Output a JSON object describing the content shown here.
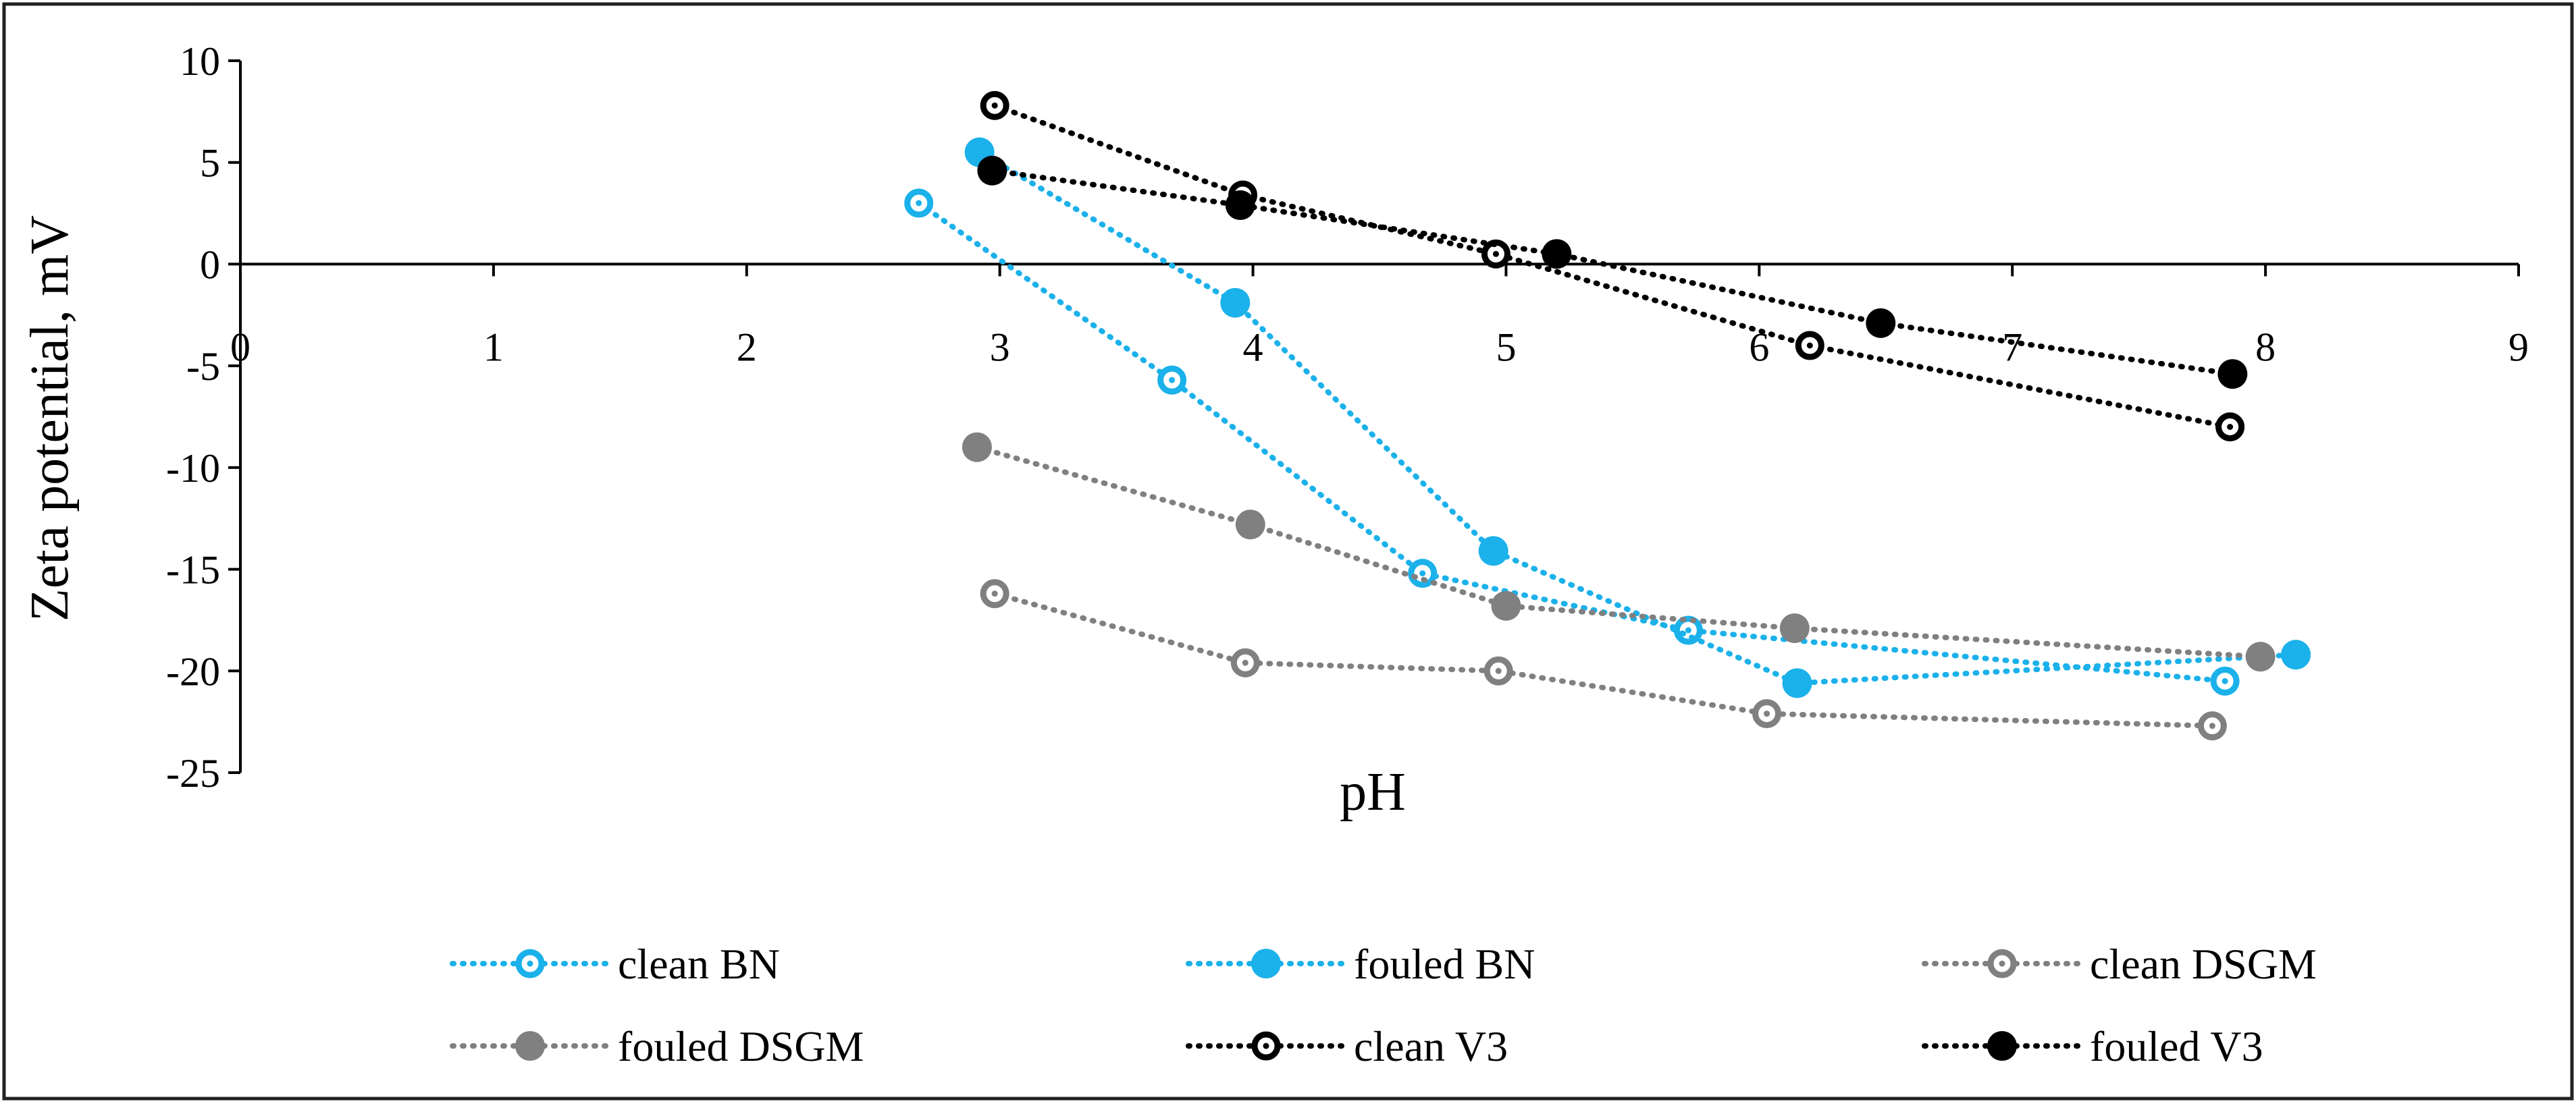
{
  "chart_data": {
    "type": "scatter",
    "title": "",
    "xlabel": "pH",
    "ylabel": "Zeta potential, mV",
    "xlim": [
      0,
      9
    ],
    "ylim": [
      -25,
      10
    ],
    "xticks": [
      0,
      1,
      2,
      3,
      4,
      5,
      6,
      7,
      8,
      9
    ],
    "yticks": [
      10,
      5,
      0,
      -5,
      -10,
      -15,
      -20,
      -25
    ],
    "grid": false,
    "legend_position": "bottom",
    "series": [
      {
        "name": "clean BN",
        "color": "#1BB1EA",
        "marker": "ring-dot",
        "x": [
          2.68,
          3.68,
          4.67,
          5.72,
          7.84
        ],
        "y": [
          3.0,
          -5.7,
          -15.2,
          -18.0,
          -20.5
        ]
      },
      {
        "name": "fouled BN",
        "color": "#1BB1EA",
        "marker": "filled",
        "x": [
          2.92,
          3.93,
          4.95,
          6.15,
          8.12
        ],
        "y": [
          5.5,
          -1.9,
          -14.1,
          -20.6,
          -19.2
        ]
      },
      {
        "name": "clean DSGM",
        "color": "#808080",
        "marker": "ring-dot",
        "x": [
          2.98,
          3.97,
          4.97,
          6.03,
          7.79
        ],
        "y": [
          -16.2,
          -19.6,
          -20.0,
          -22.1,
          -22.7
        ]
      },
      {
        "name": "fouled DSGM",
        "color": "#808080",
        "marker": "filled",
        "x": [
          2.91,
          3.99,
          5.0,
          6.14,
          7.98
        ],
        "y": [
          -9.0,
          -12.8,
          -16.8,
          -17.9,
          -19.3
        ]
      },
      {
        "name": "clean V3",
        "color": "#000000",
        "marker": "ring-dot",
        "x": [
          2.98,
          3.96,
          4.96,
          6.2,
          7.86
        ],
        "y": [
          7.8,
          3.4,
          0.5,
          -4.0,
          -8.0
        ]
      },
      {
        "name": "fouled V3",
        "color": "#000000",
        "marker": "filled",
        "x": [
          2.97,
          3.95,
          5.2,
          6.48,
          7.87
        ],
        "y": [
          4.6,
          2.9,
          0.5,
          -2.9,
          -5.4
        ]
      }
    ]
  }
}
